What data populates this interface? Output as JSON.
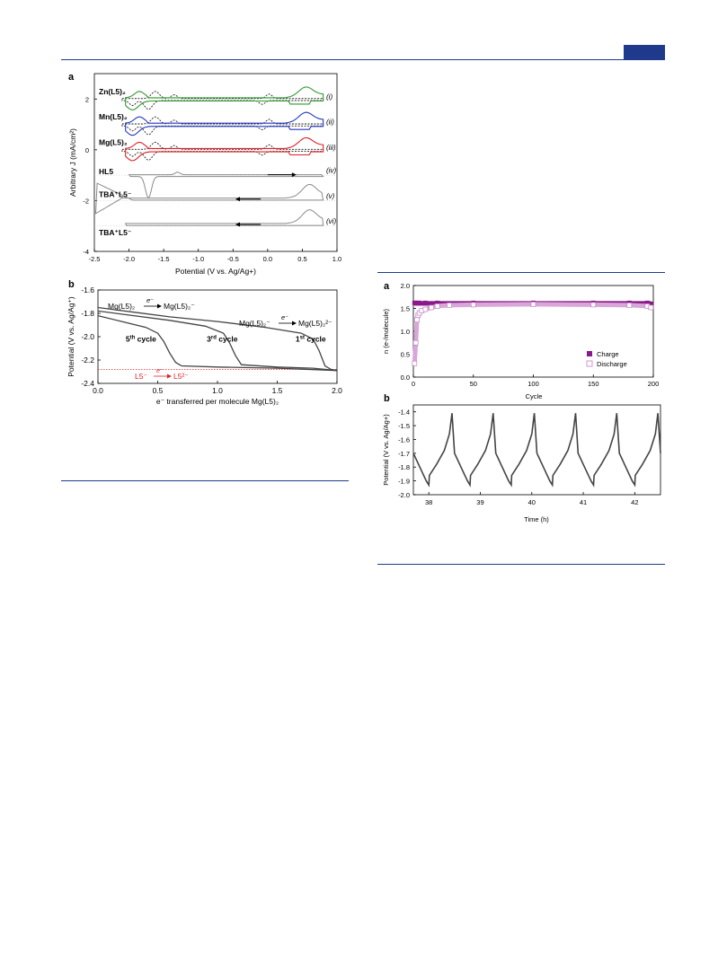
{
  "colors": {
    "journal_blue": "#1f3a8c",
    "Zn": "#2e9a2e",
    "Mn": "#2337c4",
    "Mg": "#e0202a",
    "reference_dashed": "#222222",
    "gray_trace": "#8a8a8a",
    "purple": "#8a1a8a",
    "purple_light": "#d9a6d9",
    "galvano": "#444444",
    "red_label": "#e0202a"
  },
  "chart_data": [
    {
      "id": "cv",
      "panel_label": "a",
      "type": "line",
      "title": "",
      "xlabel": "Potential (V vs. Ag/Ag+)",
      "ylabel": "Arbitrary J (mA/cm²)",
      "xlim": [
        -2.5,
        1.0
      ],
      "ylim": [
        -4,
        3
      ],
      "xticks": [
        -2.5,
        -2.0,
        -1.5,
        -1.0,
        -0.5,
        0.0,
        0.5,
        1.0
      ],
      "xtick_labels": [
        "-2.5",
        "-2.0",
        "-1.5",
        "-1.0",
        "-0.5",
        "0.0",
        "0.5",
        "1.0"
      ],
      "yticks": [
        2,
        0,
        -2,
        -4
      ],
      "ytick_labels": [
        "2",
        "0",
        "-2",
        "-4"
      ],
      "grid": false,
      "trace_labels": [
        {
          "name": "Zn(L5)₂",
          "roman": "(i)"
        },
        {
          "name": "Mn(L5)₂",
          "roman": "(ii)"
        },
        {
          "name": "Mg(L5)₂",
          "roman": "(iii)"
        },
        {
          "name": "HL5",
          "roman": "(iv)"
        },
        {
          "name": "TBA⁺L5⁻",
          "roman": "(v)"
        },
        {
          "name": "TBA⁺L5⁻",
          "roman": "(vi)"
        }
      ],
      "baselines": [
        2.0,
        1.0,
        0.0,
        -1.0,
        -2.0,
        -3.0
      ]
    },
    {
      "id": "discharge",
      "panel_label": "b",
      "type": "line",
      "title": "",
      "xlabel": "e⁻ transferred per molecule Mg(L5)₂",
      "ylabel": "Potential (V vs. Ag/Ag⁺)",
      "xlim": [
        0.0,
        2.0
      ],
      "ylim": [
        -2.4,
        -1.6
      ],
      "xticks": [
        0.0,
        0.5,
        1.0,
        1.5,
        2.0
      ],
      "xtick_labels": [
        "0.0",
        "0.5",
        "1.0",
        "1.5",
        "2.0"
      ],
      "yticks": [
        -1.6,
        -1.8,
        -2.0,
        -2.2,
        -2.4
      ],
      "ytick_labels": [
        "-1.6",
        "-1.8",
        "-2.0",
        "-2.2",
        "-2.4"
      ],
      "grid": false,
      "reference_line_y": -2.28,
      "series": [
        {
          "label": "1st cycle",
          "label_base": "1",
          "label_sup": "st",
          "label_rest": " cycle",
          "x": [
            0.0,
            0.3,
            0.6,
            1.0,
            1.4,
            1.7,
            1.8,
            1.85,
            1.9,
            1.95,
            2.0
          ],
          "y": [
            -1.75,
            -1.79,
            -1.83,
            -1.87,
            -1.92,
            -1.97,
            -2.02,
            -2.12,
            -2.25,
            -2.28,
            -2.29
          ]
        },
        {
          "label": "3rd cycle",
          "label_base": "3",
          "label_sup": "rd",
          "label_rest": " cycle",
          "x": [
            0.0,
            0.3,
            0.6,
            0.9,
            1.05,
            1.1,
            1.15,
            1.2,
            1.5,
            1.8,
            2.0
          ],
          "y": [
            -1.78,
            -1.82,
            -1.86,
            -1.91,
            -1.97,
            -2.05,
            -2.16,
            -2.24,
            -2.26,
            -2.27,
            -2.29
          ]
        },
        {
          "label": "5th cycle",
          "label_base": "5",
          "label_sup": "th",
          "label_rest": " cycle",
          "x": [
            0.0,
            0.2,
            0.4,
            0.5,
            0.55,
            0.6,
            0.65,
            0.7,
            1.0,
            1.5,
            2.0
          ],
          "y": [
            -1.82,
            -1.87,
            -1.92,
            -1.97,
            -2.04,
            -2.14,
            -2.22,
            -2.25,
            -2.26,
            -2.27,
            -2.29
          ]
        }
      ]
    },
    {
      "id": "cycling",
      "panel_label": "a",
      "type": "scatter",
      "title": "",
      "xlabel": "Cycle",
      "ylabel": "n (e-/molecule)",
      "xlim": [
        0,
        200
      ],
      "ylim": [
        0.0,
        2.0
      ],
      "xticks": [
        0,
        50,
        100,
        150,
        200
      ],
      "xtick_labels": [
        "0",
        "50",
        "100",
        "150",
        "200"
      ],
      "yticks": [
        0.0,
        0.5,
        1.0,
        1.5,
        2.0
      ],
      "ytick_labels": [
        "0.0",
        "0.5",
        "1.0",
        "1.5",
        "2.0"
      ],
      "grid": false,
      "legend": "bottom-right",
      "series": [
        {
          "name": "Charge",
          "x": [
            1,
            2,
            3,
            5,
            10,
            20,
            50,
            100,
            150,
            180,
            195,
            198
          ],
          "y": [
            1.62,
            1.62,
            1.62,
            1.62,
            1.62,
            1.62,
            1.62,
            1.62,
            1.62,
            1.62,
            1.62,
            1.6
          ]
        },
        {
          "name": "Discharge",
          "x": [
            1,
            2,
            3,
            4,
            5,
            7,
            10,
            15,
            20,
            30,
            50,
            100,
            150,
            180,
            195,
            198
          ],
          "y": [
            0.3,
            0.75,
            1.25,
            1.35,
            1.4,
            1.45,
            1.48,
            1.52,
            1.55,
            1.57,
            1.58,
            1.59,
            1.58,
            1.57,
            1.55,
            1.52
          ]
        }
      ]
    },
    {
      "id": "galvanostatic",
      "panel_label": "b",
      "type": "line",
      "title": "",
      "xlabel": "Time (h)",
      "ylabel": "Potential (V vs. Ag/Ag+)",
      "xlim": [
        37.7,
        42.5
      ],
      "ylim": [
        -2.0,
        -1.35
      ],
      "xticks": [
        38,
        39,
        40,
        41,
        42
      ],
      "xtick_labels": [
        "38",
        "39",
        "40",
        "41",
        "42"
      ],
      "yticks": [
        -1.4,
        -1.5,
        -1.6,
        -1.7,
        -1.8,
        -1.9,
        -2.0
      ],
      "ytick_labels": [
        "-1.4",
        "-1.5",
        "-1.6",
        "-1.7",
        "-1.8",
        "-1.9",
        "-2.0"
      ],
      "grid": false,
      "cycle_start_h": 37.7,
      "cycle_period_h": 0.8,
      "cycle_count": 6,
      "profile": {
        "t": [
          0.0,
          0.15,
          0.25,
          0.3,
          0.31,
          0.45,
          0.6,
          0.7,
          0.75,
          0.8
        ],
        "v": [
          -1.7,
          -1.82,
          -1.9,
          -1.93,
          -1.86,
          -1.78,
          -1.68,
          -1.56,
          -1.41,
          -1.7
        ]
      }
    }
  ],
  "cv_panel": {
    "labels": [
      {
        "text": "Zn(L5)₂"
      },
      {
        "text": "Mn(L5)₂"
      },
      {
        "text": "Mg(L5)₂"
      },
      {
        "text": "HL5"
      },
      {
        "text": "TBA⁺L5⁻"
      },
      {
        "text": "TBA⁺L5⁻"
      }
    ]
  },
  "discharge_panel": {
    "annotation_1_from": "Mg(L5)₂",
    "annotation_1_arrow": "e⁻",
    "annotation_1_to": "Mg(L5)₂⁻",
    "annotation_2_from": "Mg(L5)₂⁻",
    "annotation_2_arrow": "e⁻",
    "annotation_2_to": "Mg(L5)₂²⁻",
    "annotation_3_from": "L5⁻",
    "annotation_3_arrow": "e⁻",
    "annotation_3_to": "L5²⁻"
  }
}
